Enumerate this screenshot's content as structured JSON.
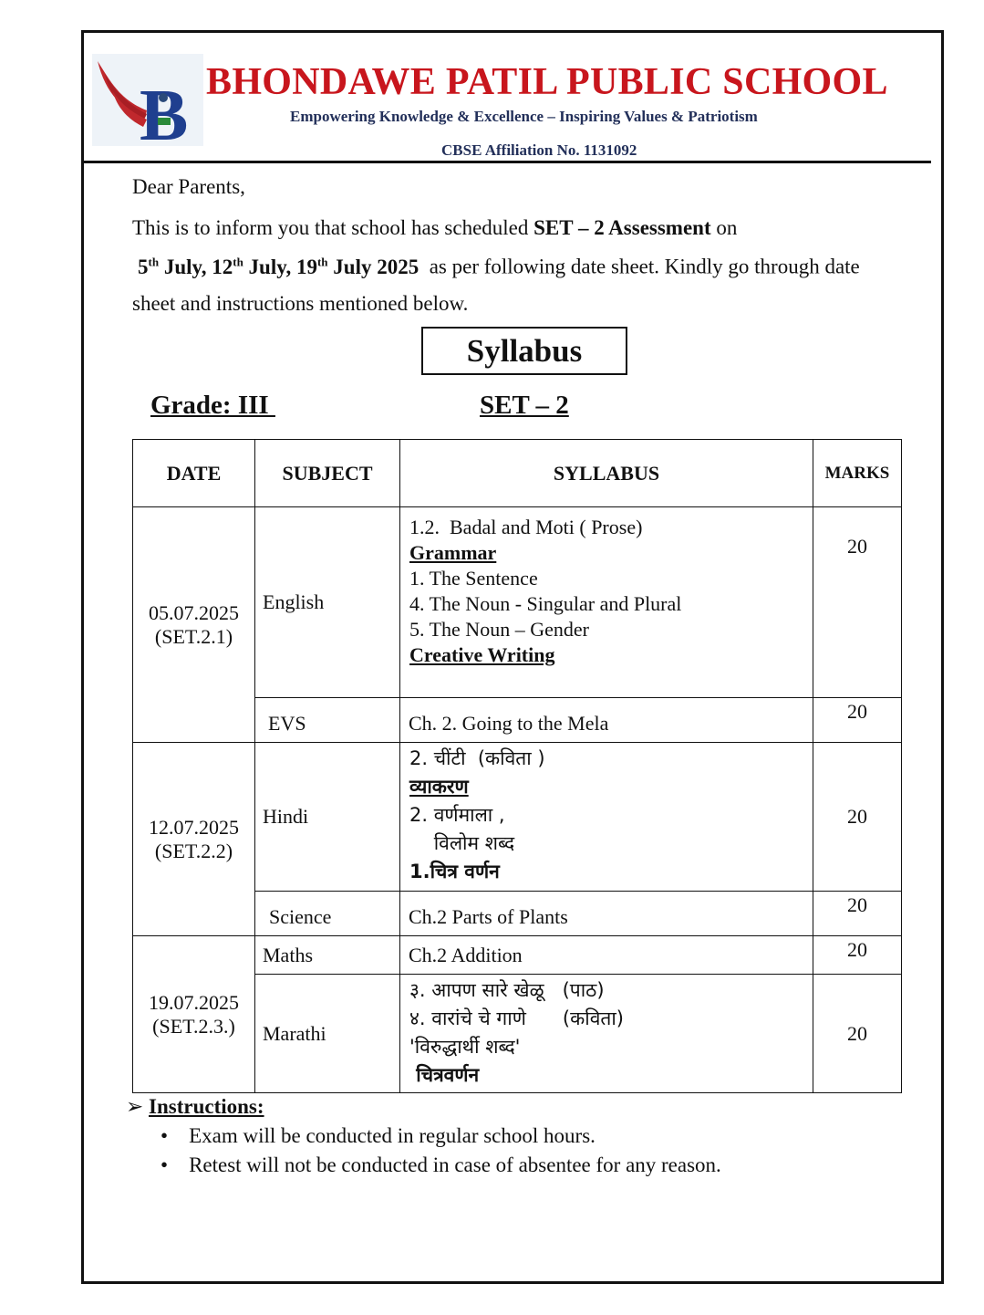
{
  "header": {
    "school_name": "BHONDAWE PATIL PUBLIC SCHOOL",
    "tagline": "Empowering Knowledge & Excellence – Inspiring Values & Patriotism",
    "affiliation": "CBSE Affiliation No. 1131092",
    "logo_letter": "B"
  },
  "letter": {
    "salutation": "Dear Parents,",
    "line1_pre": "This is to inform you that school has scheduled ",
    "line1_bold": "SET – 2 Assessment",
    "line1_post": " on",
    "d1": "5",
    "d2": "July, 12",
    "d3": "July, 19",
    "d4": "July 2025",
    "sup": "th",
    "line2_post": "  as per following date sheet. Kindly go through date",
    "line3": "sheet and instructions mentioned below."
  },
  "syllabus_title": "Syllabus",
  "grade": "Grade: III ",
  "set": "SET – 2",
  "table": {
    "headers": [
      "DATE",
      "SUBJECT",
      "SYLLABUS",
      "MARKS"
    ],
    "dates": [
      [
        "05.07.2025",
        "(SET.2.1)"
      ],
      [
        "12.07.2025",
        "(SET.2.2)"
      ],
      [
        "19.07.2025",
        "(SET.2.3.)"
      ]
    ],
    "rows": [
      {
        "subject": "English",
        "marks": "20",
        "lines": [
          "1.2.  Badal and Moti ( Prose)",
          "Grammar",
          "1. The Sentence",
          "4. The Noun - Singular and Plural",
          "5. The Noun – Gender",
          "Creative Writing"
        ]
      },
      {
        "subject": "EVS",
        "marks": "20",
        "lines": [
          "Ch. 2. Going to the Mela"
        ]
      },
      {
        "subject": "Hindi",
        "marks": "20",
        "lines": [
          "2. चींटी  (कविता )",
          "व्याकरण",
          "2. वर्णमाला ,",
          "    विलोम शब्द",
          "1.चित्र वर्णन"
        ]
      },
      {
        "subject": "Science",
        "marks": "20",
        "lines": [
          "Ch.2 Parts of Plants"
        ]
      },
      {
        "subject": "Maths",
        "marks": "20",
        "lines": [
          "Ch.2 Addition"
        ]
      },
      {
        "subject": "Marathi",
        "marks": "20",
        "lines": [
          "३. आपण सारे खेळू   (पाठ)",
          "४. वारांचे चे गाणे      (कविता)",
          "'विरुद्धार्थी शब्द'",
          " चित्रवर्णन"
        ]
      }
    ]
  },
  "instructions": {
    "title": "Instructions:",
    "items": [
      "Exam will be conducted in regular school hours.",
      "Retest will not be conducted in case of absentee for any reason."
    ]
  }
}
